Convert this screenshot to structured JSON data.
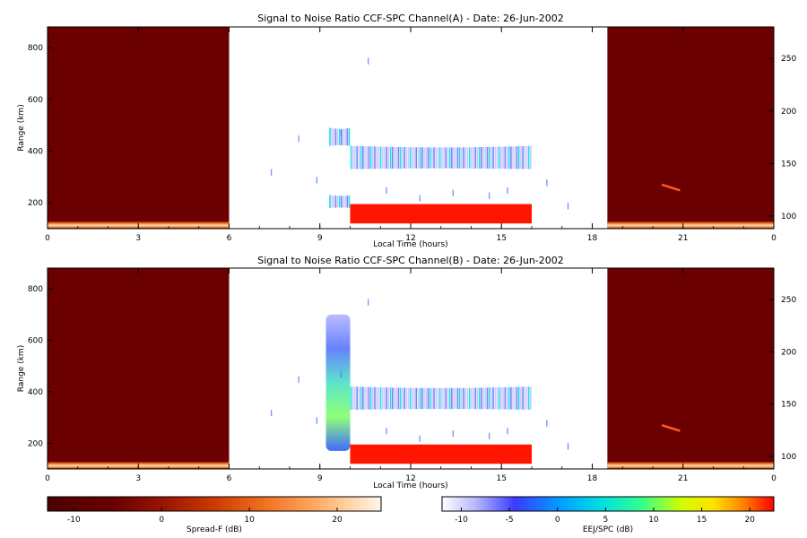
{
  "chart_data": [
    {
      "type": "heatmap",
      "title": "Signal to Noise Ratio CCF-SPC Channel(A) - Date: 26-Jun-2002",
      "xlabel": "Local Time (hours)",
      "ylabel": "Range (km)",
      "x_ticks": [
        "0",
        "3",
        "6",
        "9",
        "12",
        "15",
        "18",
        "21",
        "0"
      ],
      "y_left_ticks": [
        "200",
        "400",
        "600",
        "800"
      ],
      "y_right_ticks": [
        "100",
        "150",
        "200",
        "250"
      ],
      "xlim": [
        0,
        24
      ],
      "ylim": [
        100,
        880
      ],
      "y_right_lim": [
        88,
        280
      ],
      "spread_f_blocks": [
        [
          0,
          6
        ],
        [
          18.5,
          24
        ]
      ],
      "features": [
        {
          "name": "",
          "x": [
            9.3,
            10.0
          ],
          "y": [
            420,
            490
          ],
          "level": 0
        },
        {
          "name": "",
          "x": [
            10.0,
            16.0
          ],
          "y": [
            330,
            420
          ],
          "level": 0
        },
        {
          "name": "",
          "x": [
            9.3,
            10.0
          ],
          "y": [
            180,
            230
          ],
          "level": -5
        },
        {
          "name": "",
          "x": [
            10.0,
            16.0
          ],
          "y": [
            120,
            195
          ],
          "level": 22
        }
      ]
    },
    {
      "type": "heatmap",
      "title": "Signal to Noise Ratio CCF-SPC Channel(B) - Date: 26-Jun-2002",
      "xlabel": "Local Time (hours)",
      "ylabel": "Range (km)",
      "x_ticks": [
        "0",
        "3",
        "6",
        "9",
        "12",
        "15",
        "18",
        "21",
        "0"
      ],
      "y_left_ticks": [
        "200",
        "400",
        "600",
        "800"
      ],
      "y_right_ticks": [
        "100",
        "150",
        "200",
        "250"
      ],
      "xlim": [
        0,
        24
      ],
      "ylim": [
        100,
        880
      ],
      "y_right_lim": [
        88,
        280
      ],
      "spread_f_blocks": [
        [
          0,
          6
        ],
        [
          18.5,
          24
        ]
      ],
      "features": [
        {
          "name": "",
          "x": [
            9.2,
            10.0
          ],
          "y": [
            170,
            700
          ],
          "level": 2
        },
        {
          "name": "",
          "x": [
            10.0,
            16.0
          ],
          "y": [
            330,
            420
          ],
          "level": 0
        },
        {
          "name": "",
          "x": [
            10.0,
            16.0
          ],
          "y": [
            120,
            195
          ],
          "level": 22
        }
      ]
    }
  ],
  "colorbars": [
    {
      "label": "Spread-F (dB)",
      "ticks": [
        "-10",
        "0",
        "10",
        "20"
      ],
      "range": [
        -13,
        25
      ],
      "scheme": "spread-f"
    },
    {
      "label": "EEJ/SPC (dB)",
      "ticks": [
        "-10",
        "-5",
        "0",
        "5",
        "10",
        "15",
        "20"
      ],
      "range": [
        -12,
        22.5
      ],
      "scheme": "eej"
    }
  ],
  "colors": {
    "spread_f_background": "#6b0000",
    "strong_echo": "#ff0000"
  }
}
